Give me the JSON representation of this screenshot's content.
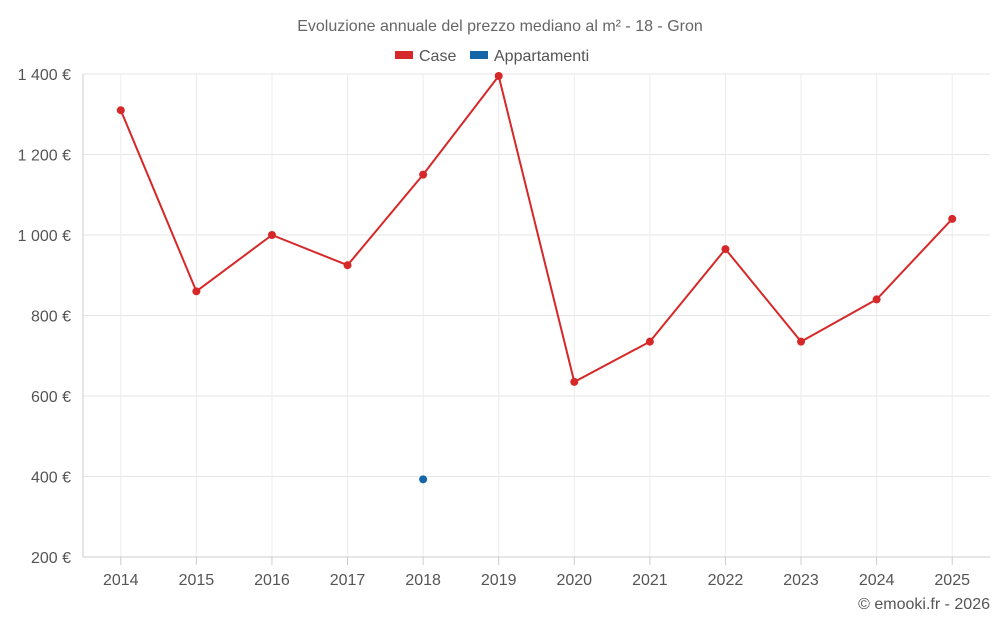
{
  "chart_data": {
    "type": "line",
    "title": "Evoluzione annuale del prezzo mediano al m² - 18 - Gron",
    "categories": [
      "2014",
      "2015",
      "2016",
      "2017",
      "2018",
      "2019",
      "2020",
      "2021",
      "2022",
      "2023",
      "2024",
      "2025"
    ],
    "series": [
      {
        "name": "Case",
        "color": "#d62828",
        "values": [
          1310,
          860,
          1000,
          925,
          1150,
          1395,
          635,
          735,
          965,
          735,
          840,
          1040
        ]
      },
      {
        "name": "Appartamenti",
        "color": "#1565a8",
        "values": [
          null,
          null,
          null,
          null,
          393,
          null,
          null,
          null,
          null,
          null,
          null,
          null
        ]
      }
    ],
    "y_ticks": [
      "200 €",
      "400 €",
      "600 €",
      "800 €",
      "1 000 €",
      "1 200 €",
      "1 400 €"
    ],
    "ylim": [
      200,
      1400
    ],
    "grid": true,
    "legend_position": "top-center",
    "credit": "© emooki.fr - 2026"
  }
}
